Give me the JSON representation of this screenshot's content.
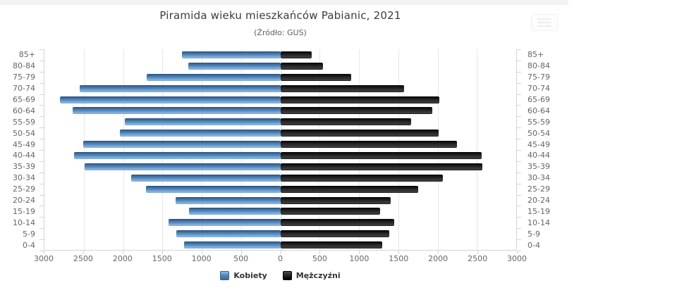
{
  "header": {
    "title": "Piramida wieku mieszkańców Pabianic, 2021",
    "subtitle": "(Źródło: GUS)"
  },
  "colors": {
    "women": "#4b80b8",
    "men": "#1a1a1a",
    "axis_text": "#666666",
    "gridline": "#e7e7e7"
  },
  "chart_data": {
    "type": "bar",
    "variant": "population-pyramid",
    "title": "Piramida wieku mieszkańców Pabianic, 2021",
    "subtitle": "(Źródło: GUS)",
    "categories": [
      "85+",
      "80-84",
      "75-79",
      "70-74",
      "65-69",
      "60-64",
      "55-59",
      "50-54",
      "45-49",
      "40-44",
      "35-39",
      "30-34",
      "25-29",
      "20-24",
      "15-19",
      "10-14",
      "5-9",
      "0-4"
    ],
    "series": [
      {
        "name": "Kobiety",
        "side": "left",
        "color": "#4b80b8",
        "values": [
          1250,
          1170,
          1700,
          2550,
          2800,
          2640,
          1980,
          2040,
          2510,
          2620,
          2490,
          1900,
          1710,
          1330,
          1160,
          1420,
          1320,
          1220
        ]
      },
      {
        "name": "Mężczyźni",
        "side": "right",
        "color": "#1a1a1a",
        "values": [
          400,
          540,
          900,
          1570,
          2020,
          1930,
          1660,
          2010,
          2250,
          2560,
          2570,
          2070,
          1750,
          1400,
          1270,
          1450,
          1390,
          1300
        ]
      }
    ],
    "x_axis": {
      "tick_labels": [
        "3000",
        "2500",
        "2000",
        "1500",
        "1000",
        "500",
        "0",
        "500",
        "1000",
        "1500",
        "2000",
        "2500",
        "3000"
      ],
      "max_each_side": 3000,
      "tick_step": 500
    },
    "grid": true,
    "legend_position": "bottom",
    "y_axis_mirrored": true
  },
  "legend": {
    "items": [
      {
        "label": "Kobiety"
      },
      {
        "label": "Mężczyźni"
      }
    ]
  }
}
